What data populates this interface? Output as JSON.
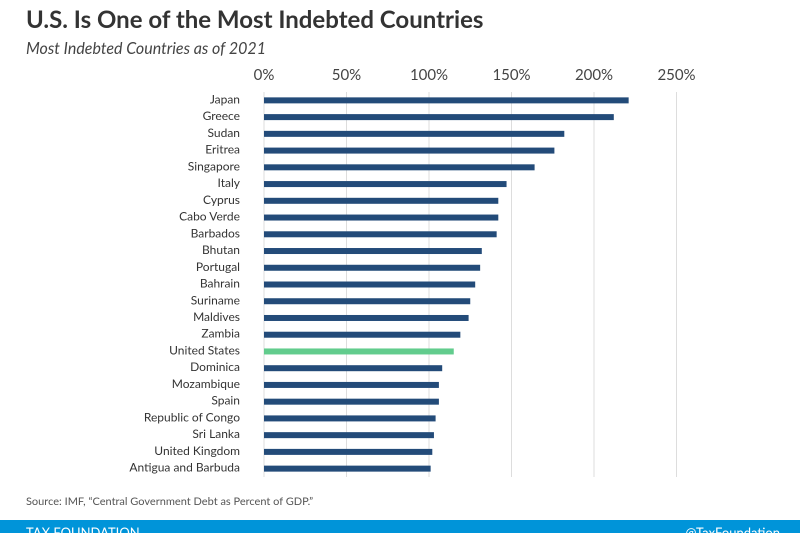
{
  "chart_data": {
    "type": "bar",
    "orientation": "horizontal",
    "title": "U.S. Is One of the Most Indebted Countries",
    "subtitle": "Most Indebted Countries as of 2021",
    "categories": [
      "Japan",
      "Greece",
      "Sudan",
      "Eritrea",
      "Singapore",
      "Italy",
      "Cyprus",
      "Cabo Verde",
      "Barbados",
      "Bhutan",
      "Portugal",
      "Bahrain",
      "Suriname",
      "Maldives",
      "Zambia",
      "United States",
      "Dominica",
      "Mozambique",
      "Spain",
      "Republic of Congo",
      "Sri Lanka",
      "United Kingdom",
      "Antigua and Barbuda"
    ],
    "values": [
      221,
      212,
      182,
      176,
      164,
      147,
      142,
      142,
      141,
      132,
      131,
      128,
      125,
      124,
      119,
      115,
      108,
      106,
      106,
      104,
      103,
      102,
      101
    ],
    "colors": [
      "#234b79",
      "#234b79",
      "#234b79",
      "#234b79",
      "#234b79",
      "#234b79",
      "#234b79",
      "#234b79",
      "#234b79",
      "#234b79",
      "#234b79",
      "#234b79",
      "#234b79",
      "#234b79",
      "#234b79",
      "#62cc8d",
      "#234b79",
      "#234b79",
      "#234b79",
      "#234b79",
      "#234b79",
      "#234b79",
      "#234b79"
    ],
    "xlim": [
      0,
      260
    ],
    "xticks": [
      {
        "value": 0,
        "label": "0%"
      },
      {
        "value": 50,
        "label": "50%"
      },
      {
        "value": 100,
        "label": "100%"
      },
      {
        "value": 150,
        "label": "150%"
      },
      {
        "value": 200,
        "label": "200%"
      },
      {
        "value": 250,
        "label": "250%"
      }
    ],
    "grid": true,
    "source": "Source: IMF, “Central Government Debt as Percent of GDP.”",
    "footer": {
      "left": "TAX FOUNDATION",
      "right": "@TaxFoundation"
    }
  }
}
